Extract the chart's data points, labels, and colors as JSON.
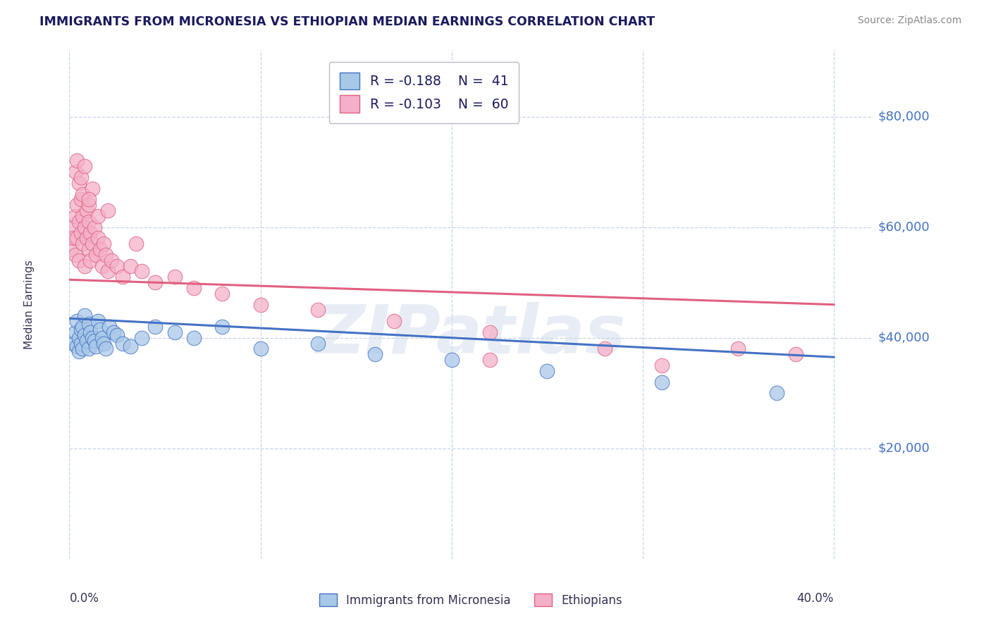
{
  "title": "IMMIGRANTS FROM MICRONESIA VS ETHIOPIAN MEDIAN EARNINGS CORRELATION CHART",
  "source": "Source: ZipAtlas.com",
  "ylabel": "Median Earnings",
  "watermark": "ZIPatlas",
  "legend_mic_R": -0.188,
  "legend_mic_N": 41,
  "legend_eth_R": -0.103,
  "legend_eth_N": 60,
  "mic_fill": "#a8c8e8",
  "mic_edge": "#4472c4",
  "eth_fill": "#f4b0c8",
  "eth_edge": "#e06080",
  "ytick_labels": [
    "$20,000",
    "$40,000",
    "$60,000",
    "$80,000"
  ],
  "ytick_values": [
    20000,
    40000,
    60000,
    80000
  ],
  "xlim": [
    0.0,
    0.42
  ],
  "ylim": [
    0,
    92000
  ],
  "title_color": "#1a1a5e",
  "axis_color": "#333355",
  "ytick_color": "#4472c4",
  "grid_color": "#c8d4ea",
  "source_color": "#888888",
  "bg": "#ffffff",
  "mic_trend_x": [
    0.0,
    0.4
  ],
  "mic_trend_y": [
    43500,
    36500
  ],
  "eth_trend_x": [
    0.0,
    0.4
  ],
  "eth_trend_y": [
    50500,
    46000
  ],
  "mic_x": [
    0.002,
    0.003,
    0.004,
    0.004,
    0.005,
    0.005,
    0.006,
    0.006,
    0.007,
    0.007,
    0.008,
    0.008,
    0.009,
    0.01,
    0.01,
    0.011,
    0.012,
    0.013,
    0.014,
    0.015,
    0.016,
    0.017,
    0.018,
    0.019,
    0.021,
    0.023,
    0.025,
    0.028,
    0.032,
    0.038,
    0.045,
    0.055,
    0.065,
    0.08,
    0.1,
    0.13,
    0.16,
    0.2,
    0.25,
    0.31,
    0.37
  ],
  "mic_y": [
    39000,
    41000,
    38500,
    43000,
    40000,
    37500,
    41500,
    39000,
    42000,
    38000,
    44000,
    40500,
    39500,
    38000,
    42500,
    41000,
    40000,
    39500,
    38500,
    43000,
    41500,
    40000,
    39000,
    38000,
    42000,
    41000,
    40500,
    39000,
    38500,
    40000,
    42000,
    41000,
    40000,
    42000,
    38000,
    39000,
    37000,
    36000,
    34000,
    32000,
    30000
  ],
  "eth_x": [
    0.001,
    0.002,
    0.002,
    0.003,
    0.003,
    0.004,
    0.004,
    0.005,
    0.005,
    0.006,
    0.006,
    0.007,
    0.007,
    0.008,
    0.008,
    0.009,
    0.009,
    0.01,
    0.01,
    0.011,
    0.011,
    0.012,
    0.013,
    0.014,
    0.015,
    0.016,
    0.017,
    0.018,
    0.019,
    0.02,
    0.022,
    0.025,
    0.028,
    0.032,
    0.038,
    0.045,
    0.055,
    0.065,
    0.08,
    0.1,
    0.13,
    0.17,
    0.22,
    0.28,
    0.35,
    0.38,
    0.003,
    0.005,
    0.007,
    0.01,
    0.012,
    0.015,
    0.004,
    0.006,
    0.008,
    0.01,
    0.02,
    0.035,
    0.22,
    0.31
  ],
  "eth_y": [
    56000,
    60000,
    58000,
    62000,
    55000,
    64000,
    58000,
    61000,
    54000,
    59000,
    65000,
    57000,
    62000,
    60000,
    53000,
    58000,
    63000,
    56000,
    61000,
    54000,
    59000,
    57000,
    60000,
    55000,
    58000,
    56000,
    53000,
    57000,
    55000,
    52000,
    54000,
    53000,
    51000,
    53000,
    52000,
    50000,
    51000,
    49000,
    48000,
    46000,
    45000,
    43000,
    41000,
    38000,
    38000,
    37000,
    70000,
    68000,
    66000,
    64000,
    67000,
    62000,
    72000,
    69000,
    71000,
    65000,
    63000,
    57000,
    36000,
    35000
  ]
}
